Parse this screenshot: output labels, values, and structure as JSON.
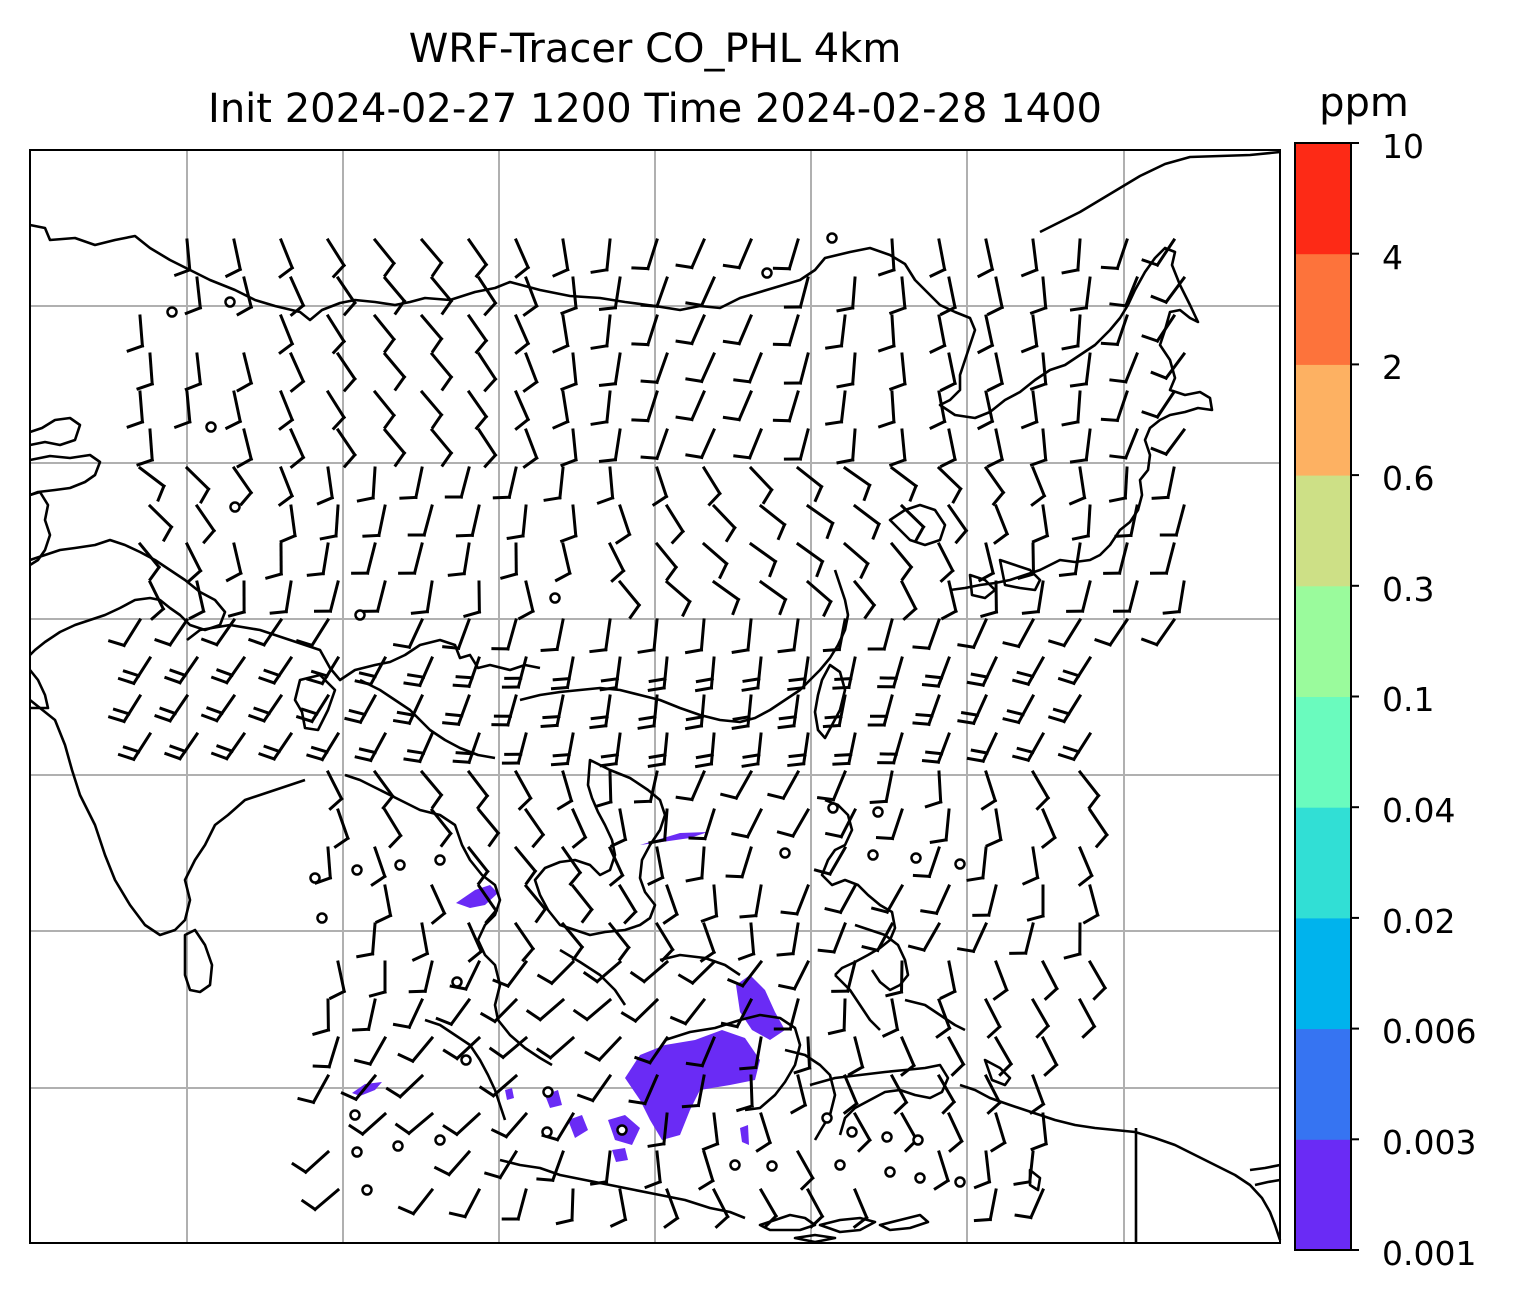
{
  "title": {
    "line1": "WRF-Tracer CO_PHL 4km",
    "line2": "Init 2024-02-27 1200 Time 2024-02-28 1400"
  },
  "colorbar": {
    "units": "ppm",
    "levels": [
      "0.001",
      "0.003",
      "0.006",
      "0.02",
      "0.04",
      "0.1",
      "0.3",
      "0.6",
      "2",
      "4",
      "10"
    ],
    "colors": [
      "#6a2bf5",
      "#3674f2",
      "#00b3ed",
      "#31dfd5",
      "#6afbbe",
      "#9afb9c",
      "#cde086",
      "#fdb162",
      "#fd733b",
      "#fd2a16"
    ]
  },
  "map": {
    "coastline_color": "#000000",
    "grid_color": "#b0b0b0",
    "plume_color": "#6a2bf5"
  }
}
